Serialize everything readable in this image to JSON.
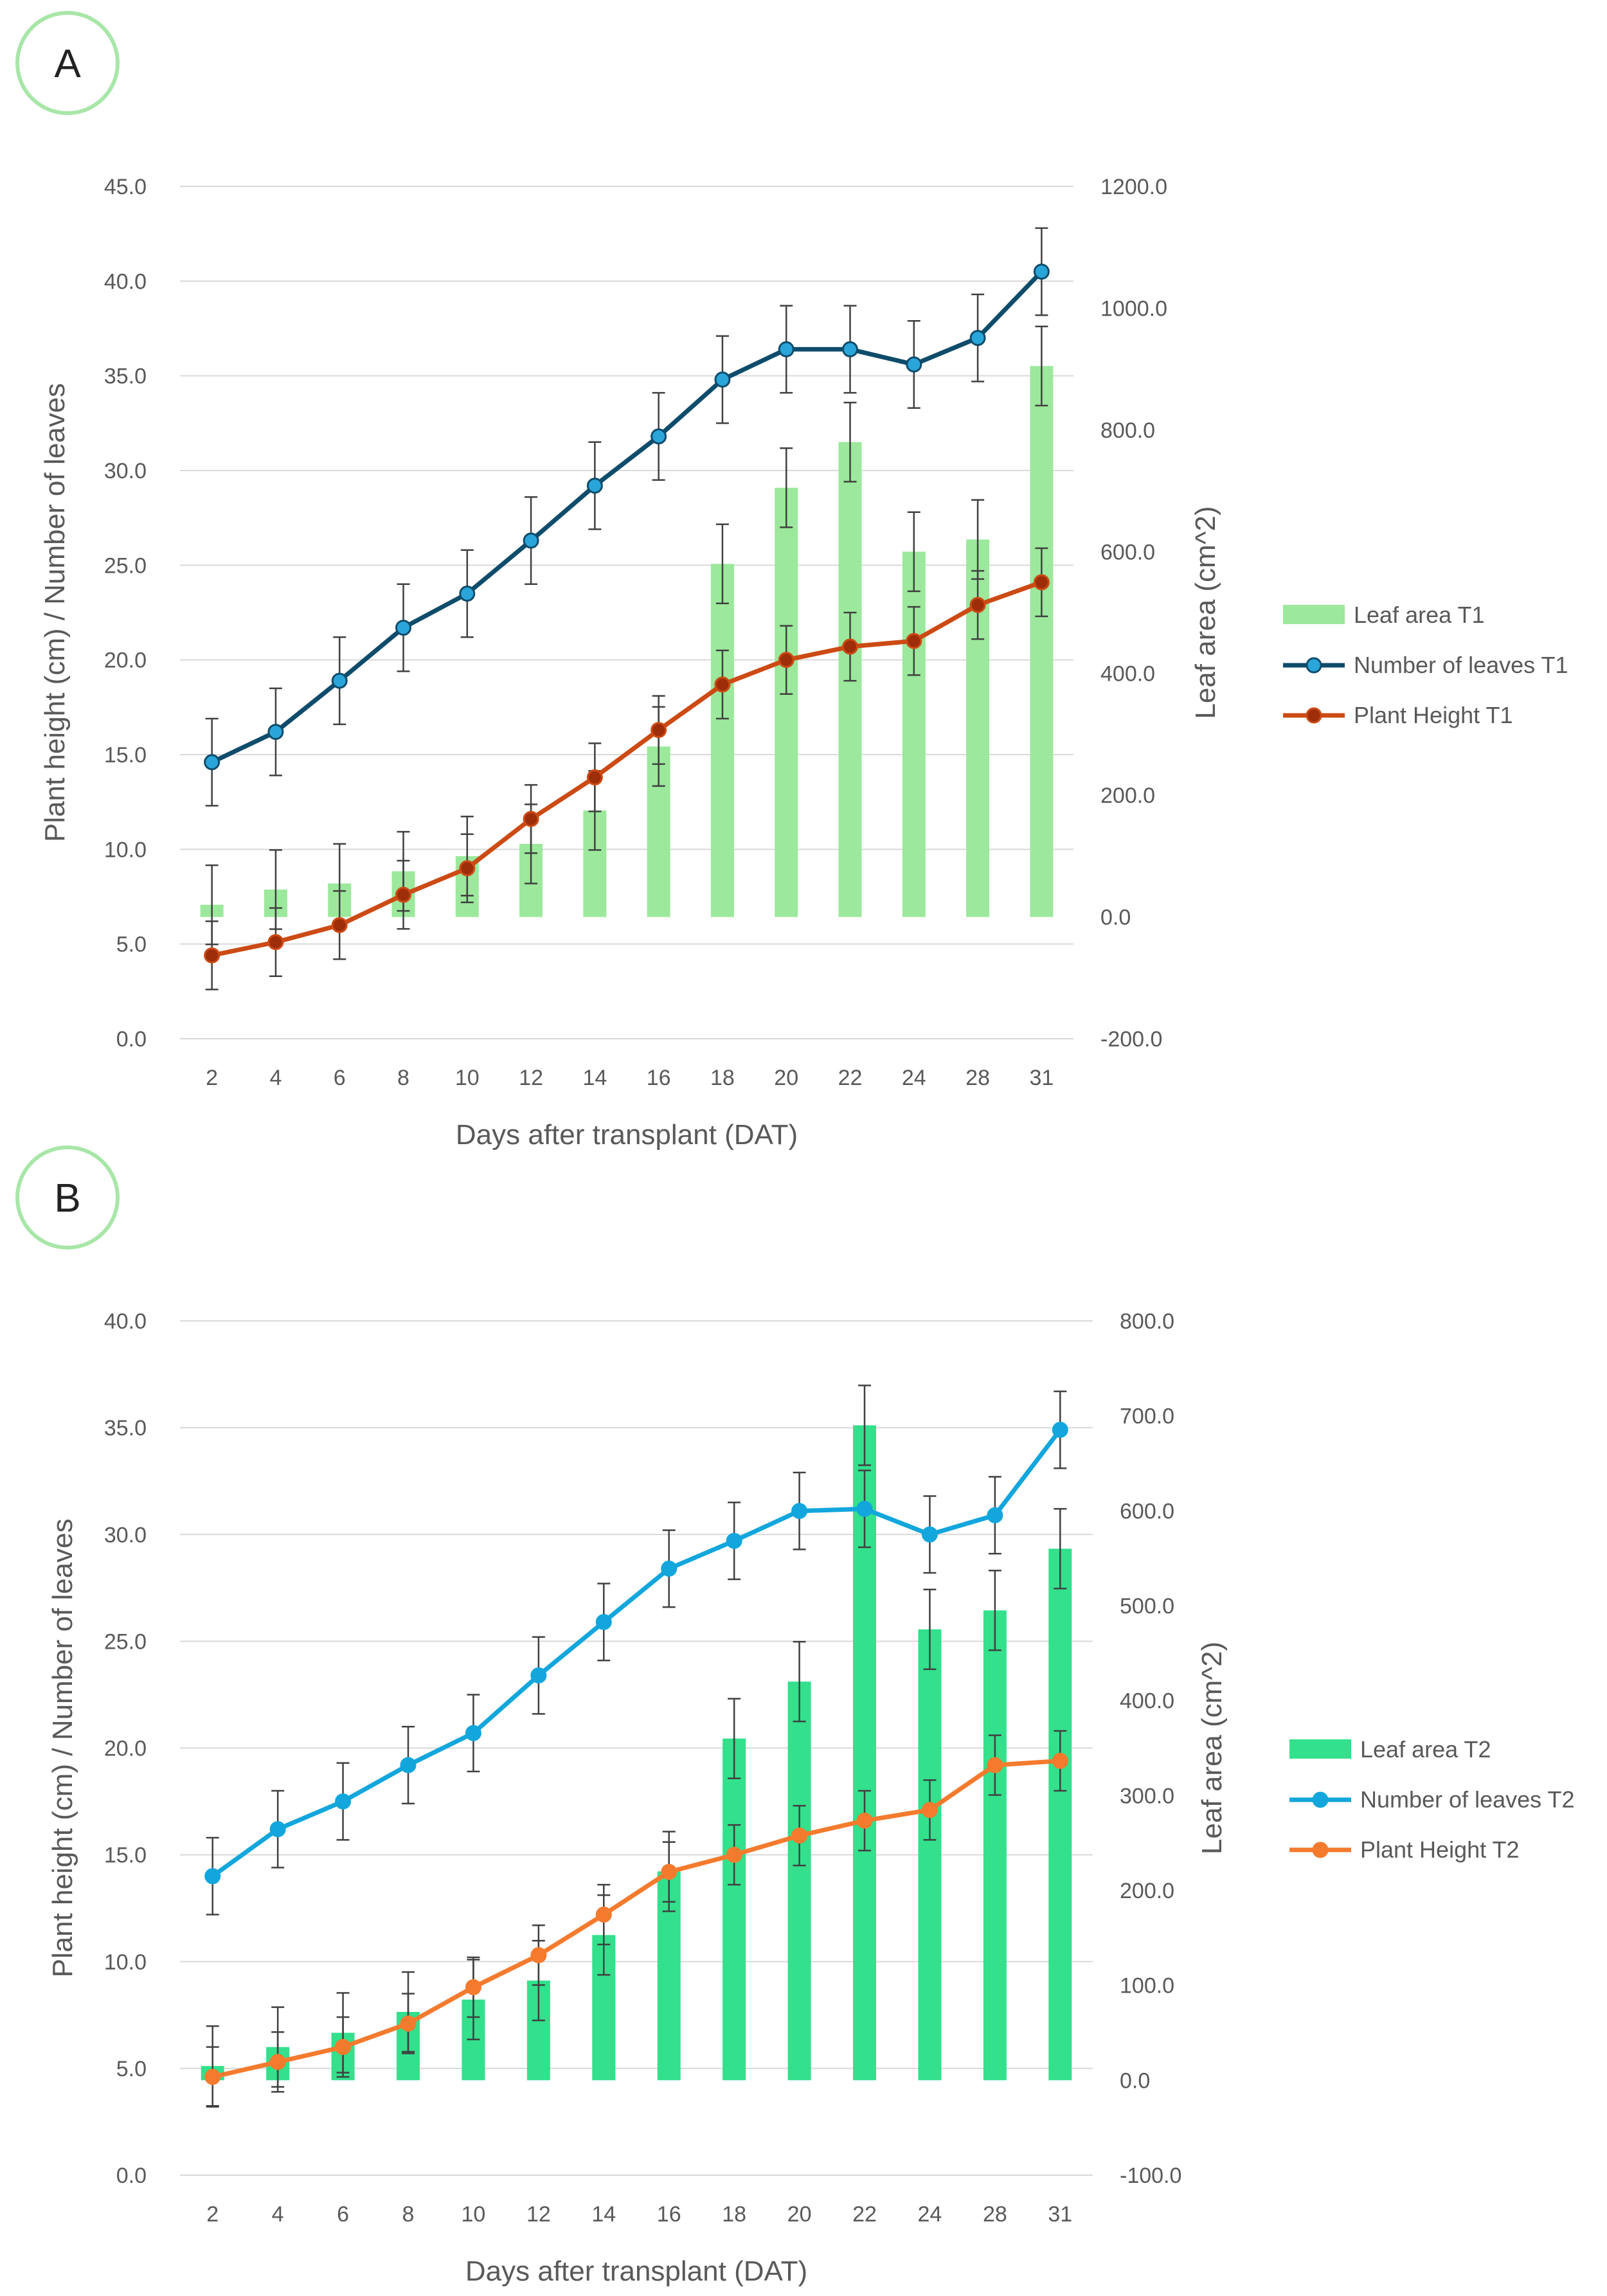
{
  "colors": {
    "grid": "#d9d9d9",
    "axis_text": "#595959",
    "panel_circle": "#a8e6a8",
    "error_bar": "#404040",
    "leaf_area_t1": "#9ce89c",
    "leaves_t1": "#0f4c6b",
    "leaves_t1_marker": "#2aa5d9",
    "height_t1": "#cc4a14",
    "height_t1_marker": "#9e2e0a",
    "leaf_area_t2": "#33e08c",
    "leaves_t2": "#12a6dc",
    "height_t2": "#f47b2e"
  },
  "chart_data": [
    {
      "type": "bar+line",
      "panel_label": "A",
      "categories": [
        "2",
        "4",
        "6",
        "8",
        "10",
        "12",
        "14",
        "16",
        "18",
        "20",
        "22",
        "24",
        "28",
        "31"
      ],
      "xlabel": "Days after transplant (DAT)",
      "ylabel_left": "Plant height (cm) / Number of leaves",
      "ylabel_right": "Leaf area  (cm^2)",
      "ylim_left": [
        0,
        45
      ],
      "yticks_left": [
        "0.0",
        "5.0",
        "10.0",
        "15.0",
        "20.0",
        "25.0",
        "30.0",
        "35.0",
        "40.0",
        "45.0"
      ],
      "ylim_right": [
        -200,
        1200
      ],
      "yticks_right": [
        "-200.0",
        "0.0",
        "200.0",
        "400.0",
        "600.0",
        "800.0",
        "1000.0",
        "1200.0"
      ],
      "grid": true,
      "legend_position": "right",
      "series": [
        {
          "name": "Leaf area T1",
          "kind": "bar",
          "axis": "right",
          "values": [
            20,
            45,
            55,
            75,
            100,
            120,
            175,
            280,
            580,
            705,
            780,
            600,
            620,
            905
          ],
          "errors": [
            65,
            65,
            65,
            65,
            65,
            65,
            65,
            65,
            65,
            65,
            65,
            65,
            65,
            65
          ]
        },
        {
          "name": "Number of leaves T1",
          "kind": "line",
          "axis": "left",
          "values": [
            14.6,
            16.2,
            18.9,
            21.7,
            23.5,
            26.3,
            29.2,
            31.8,
            34.8,
            36.4,
            36.4,
            35.6,
            37.0,
            40.5
          ],
          "errors": [
            2.3,
            2.3,
            2.3,
            2.3,
            2.3,
            2.3,
            2.3,
            2.3,
            2.3,
            2.3,
            2.3,
            2.3,
            2.3,
            2.3
          ]
        },
        {
          "name": "Plant Height T1",
          "kind": "line",
          "axis": "left",
          "values": [
            4.4,
            5.1,
            6.0,
            7.6,
            9.0,
            11.6,
            13.8,
            16.3,
            18.7,
            20.0,
            20.7,
            21.0,
            22.9,
            24.1
          ],
          "errors": [
            1.8,
            1.8,
            1.8,
            1.8,
            1.8,
            1.8,
            1.8,
            1.8,
            1.8,
            1.8,
            1.8,
            1.8,
            1.8,
            1.8
          ]
        }
      ]
    },
    {
      "type": "bar+line",
      "panel_label": "B",
      "categories": [
        "2",
        "4",
        "6",
        "8",
        "10",
        "12",
        "14",
        "16",
        "18",
        "20",
        "22",
        "24",
        "28",
        "31"
      ],
      "xlabel": "Days after transplant (DAT)",
      "ylabel_left": "Plant height (cm) / Number of leaves",
      "ylabel_right": "Leaf area  (cm^2)",
      "ylim_left": [
        0,
        40
      ],
      "yticks_left": [
        "0.0",
        "5.0",
        "10.0",
        "15.0",
        "20.0",
        "25.0",
        "30.0",
        "35.0",
        "40.0"
      ],
      "ylim_right": [
        -100,
        800
      ],
      "yticks_right": [
        "-100.0",
        "0.0",
        "100.0",
        "200.0",
        "300.0",
        "400.0",
        "500.0",
        "600.0",
        "700.0",
        "800.0"
      ],
      "grid": true,
      "legend_position": "right",
      "series": [
        {
          "name": "Leaf area T2",
          "kind": "bar",
          "axis": "right",
          "values": [
            15,
            35,
            50,
            72,
            85,
            105,
            153,
            220,
            360,
            420,
            690,
            475,
            495,
            560
          ],
          "errors": [
            42,
            42,
            42,
            42,
            42,
            42,
            42,
            42,
            42,
            42,
            42,
            42,
            42,
            42
          ]
        },
        {
          "name": "Number of leaves T2",
          "kind": "line",
          "axis": "left",
          "values": [
            14.0,
            16.2,
            17.5,
            19.2,
            20.7,
            23.4,
            25.9,
            28.4,
            29.7,
            31.1,
            31.2,
            30.0,
            30.9,
            34.9
          ],
          "errors": [
            1.8,
            1.8,
            1.8,
            1.8,
            1.8,
            1.8,
            1.8,
            1.8,
            1.8,
            1.8,
            1.8,
            1.8,
            1.8,
            1.8
          ]
        },
        {
          "name": "Plant Height T2",
          "kind": "line",
          "axis": "left",
          "values": [
            4.6,
            5.3,
            6.0,
            7.1,
            8.8,
            10.3,
            12.2,
            14.2,
            15.0,
            15.9,
            16.6,
            17.1,
            19.2,
            19.4
          ],
          "errors": [
            1.4,
            1.4,
            1.4,
            1.4,
            1.4,
            1.4,
            1.4,
            1.4,
            1.4,
            1.4,
            1.4,
            1.4,
            1.4,
            1.4
          ]
        }
      ]
    }
  ]
}
